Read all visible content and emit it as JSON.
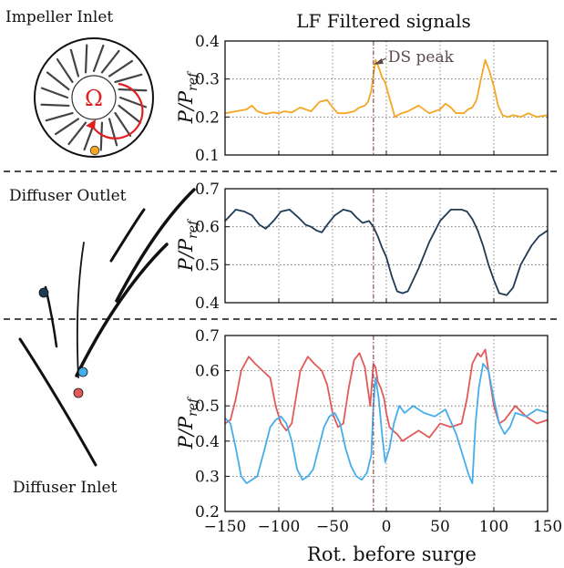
{
  "figure": {
    "title": "LF Filtered signals",
    "xlabel": "Rot. before surge",
    "ylabel_main": "P/P",
    "ylabel_sub": "ref",
    "regions": {
      "impeller_inlet": "Impeller Inlet",
      "diffuser_outlet": "Diffuser Outlet",
      "diffuser_inlet": "Diffuser Inlet"
    },
    "omega_symbol": "Ω",
    "annotation": {
      "text": "DS peak",
      "x": -12,
      "y": 0.35
    }
  },
  "colors": {
    "orange": "#f5a623",
    "navy": "#1f3a55",
    "red": "#e05a5a",
    "blue": "#45aeea",
    "guide": "#8a4f5a",
    "omega": "#e02020"
  },
  "chart_data": [
    {
      "type": "line",
      "panel": "impeller-inlet",
      "xlim": [
        -150,
        150
      ],
      "ylim": [
        0.1,
        0.4
      ],
      "xticks": [
        -150,
        -100,
        -50,
        0,
        50,
        100,
        150
      ],
      "yticks": [
        0.1,
        0.2,
        0.3,
        0.4
      ],
      "ytick_labels": [
        "0.1",
        "0.2",
        "0.3",
        "0.4"
      ],
      "show_xtick_labels": false,
      "grid": true,
      "vline_x": -12,
      "series": [
        {
          "color": "#f5a623",
          "x": [
            -150,
            -140,
            -130,
            -125,
            -120,
            -112,
            -105,
            -100,
            -95,
            -88,
            -80,
            -70,
            -62,
            -55,
            -50,
            -45,
            -38,
            -30,
            -25,
            -20,
            -17,
            -14,
            -12,
            -10,
            -7,
            -4,
            -1,
            3,
            8,
            14,
            20,
            30,
            40,
            50,
            55,
            60,
            65,
            72,
            76,
            80,
            84,
            88,
            92,
            96,
            100,
            104,
            108,
            113,
            118,
            125,
            132,
            140,
            150
          ],
          "y": [
            0.21,
            0.215,
            0.22,
            0.23,
            0.215,
            0.208,
            0.212,
            0.21,
            0.215,
            0.212,
            0.225,
            0.215,
            0.24,
            0.245,
            0.225,
            0.21,
            0.21,
            0.215,
            0.225,
            0.23,
            0.24,
            0.27,
            0.31,
            0.35,
            0.33,
            0.305,
            0.29,
            0.25,
            0.2,
            0.21,
            0.215,
            0.23,
            0.21,
            0.22,
            0.235,
            0.225,
            0.21,
            0.21,
            0.22,
            0.225,
            0.245,
            0.3,
            0.35,
            0.32,
            0.28,
            0.23,
            0.205,
            0.2,
            0.205,
            0.2,
            0.21,
            0.2,
            0.205
          ]
        }
      ]
    },
    {
      "type": "line",
      "panel": "diffuser-outlet",
      "xlim": [
        -150,
        150
      ],
      "ylim": [
        0.4,
        0.7
      ],
      "xticks": [
        -150,
        -100,
        -50,
        0,
        50,
        100,
        150
      ],
      "yticks": [
        0.4,
        0.5,
        0.6,
        0.7
      ],
      "ytick_labels": [
        "0.4",
        "0.5",
        "0.6",
        "0.7"
      ],
      "show_xtick_labels": false,
      "grid": true,
      "vline_x": -12,
      "series": [
        {
          "color": "#1f3a55",
          "x": [
            -150,
            -145,
            -140,
            -132,
            -125,
            -118,
            -112,
            -105,
            -98,
            -90,
            -82,
            -75,
            -70,
            -65,
            -60,
            -55,
            -48,
            -40,
            -33,
            -28,
            -22,
            -16,
            -12,
            -8,
            -4,
            0,
            5,
            10,
            15,
            20,
            30,
            40,
            50,
            60,
            70,
            75,
            80,
            85,
            90,
            95,
            100,
            105,
            112,
            118,
            125,
            135,
            142,
            150
          ],
          "y": [
            0.615,
            0.63,
            0.645,
            0.64,
            0.63,
            0.605,
            0.595,
            0.615,
            0.64,
            0.645,
            0.625,
            0.605,
            0.6,
            0.59,
            0.585,
            0.605,
            0.63,
            0.645,
            0.64,
            0.625,
            0.61,
            0.615,
            0.6,
            0.575,
            0.545,
            0.52,
            0.47,
            0.43,
            0.425,
            0.43,
            0.49,
            0.56,
            0.615,
            0.645,
            0.645,
            0.64,
            0.62,
            0.59,
            0.55,
            0.5,
            0.46,
            0.425,
            0.42,
            0.44,
            0.5,
            0.55,
            0.575,
            0.59
          ]
        }
      ]
    },
    {
      "type": "line",
      "panel": "diffuser-inlet",
      "xlim": [
        -150,
        150
      ],
      "ylim": [
        0.2,
        0.7
      ],
      "xticks": [
        -150,
        -100,
        -50,
        0,
        50,
        100,
        150
      ],
      "xtick_labels": [
        "−150",
        "−100",
        "−50",
        "0",
        "50",
        "100",
        "150"
      ],
      "yticks": [
        0.2,
        0.3,
        0.4,
        0.5,
        0.6,
        0.7
      ],
      "ytick_labels": [
        "0.2",
        "0.3",
        "0.4",
        "0.5",
        "0.6",
        "0.7"
      ],
      "show_xtick_labels": true,
      "grid": true,
      "vline_x": -12,
      "series": [
        {
          "color": "#e05a5a",
          "x": [
            -150,
            -145,
            -140,
            -135,
            -128,
            -122,
            -115,
            -108,
            -103,
            -98,
            -93,
            -88,
            -80,
            -73,
            -67,
            -60,
            -55,
            -50,
            -45,
            -40,
            -35,
            -30,
            -25,
            -20,
            -15,
            -12,
            -10,
            -8,
            -5,
            -2,
            0,
            3,
            6,
            10,
            15,
            20,
            30,
            40,
            50,
            60,
            70,
            75,
            80,
            85,
            88,
            92,
            95,
            100,
            105,
            110,
            115,
            120,
            130,
            140,
            150
          ],
          "y": [
            0.45,
            0.46,
            0.52,
            0.6,
            0.64,
            0.62,
            0.6,
            0.58,
            0.5,
            0.45,
            0.43,
            0.45,
            0.6,
            0.64,
            0.62,
            0.6,
            0.56,
            0.48,
            0.44,
            0.45,
            0.55,
            0.63,
            0.65,
            0.61,
            0.5,
            0.62,
            0.61,
            0.57,
            0.55,
            0.52,
            0.48,
            0.44,
            0.43,
            0.42,
            0.4,
            0.41,
            0.43,
            0.41,
            0.45,
            0.44,
            0.45,
            0.52,
            0.62,
            0.65,
            0.64,
            0.66,
            0.6,
            0.5,
            0.45,
            0.46,
            0.48,
            0.5,
            0.47,
            0.45,
            0.46
          ]
        },
        {
          "color": "#45aeea",
          "x": [
            -150,
            -145,
            -140,
            -135,
            -130,
            -125,
            -120,
            -113,
            -108,
            -103,
            -98,
            -93,
            -88,
            -83,
            -78,
            -73,
            -68,
            -63,
            -58,
            -53,
            -48,
            -43,
            -38,
            -33,
            -28,
            -23,
            -18,
            -14,
            -12,
            -10,
            -7,
            -4,
            -1,
            3,
            7,
            12,
            17,
            25,
            35,
            45,
            55,
            65,
            72,
            77,
            80,
            83,
            86,
            90,
            95,
            100,
            105,
            110,
            115,
            120,
            130,
            140,
            150
          ],
          "y": [
            0.465,
            0.45,
            0.38,
            0.3,
            0.28,
            0.29,
            0.3,
            0.38,
            0.44,
            0.46,
            0.47,
            0.45,
            0.4,
            0.32,
            0.29,
            0.3,
            0.32,
            0.38,
            0.44,
            0.47,
            0.48,
            0.45,
            0.38,
            0.33,
            0.3,
            0.29,
            0.31,
            0.36,
            0.5,
            0.58,
            0.52,
            0.42,
            0.34,
            0.38,
            0.45,
            0.5,
            0.48,
            0.5,
            0.48,
            0.47,
            0.49,
            0.42,
            0.35,
            0.3,
            0.28,
            0.45,
            0.55,
            0.62,
            0.6,
            0.52,
            0.45,
            0.42,
            0.44,
            0.48,
            0.47,
            0.49,
            0.48
          ]
        }
      ]
    }
  ]
}
